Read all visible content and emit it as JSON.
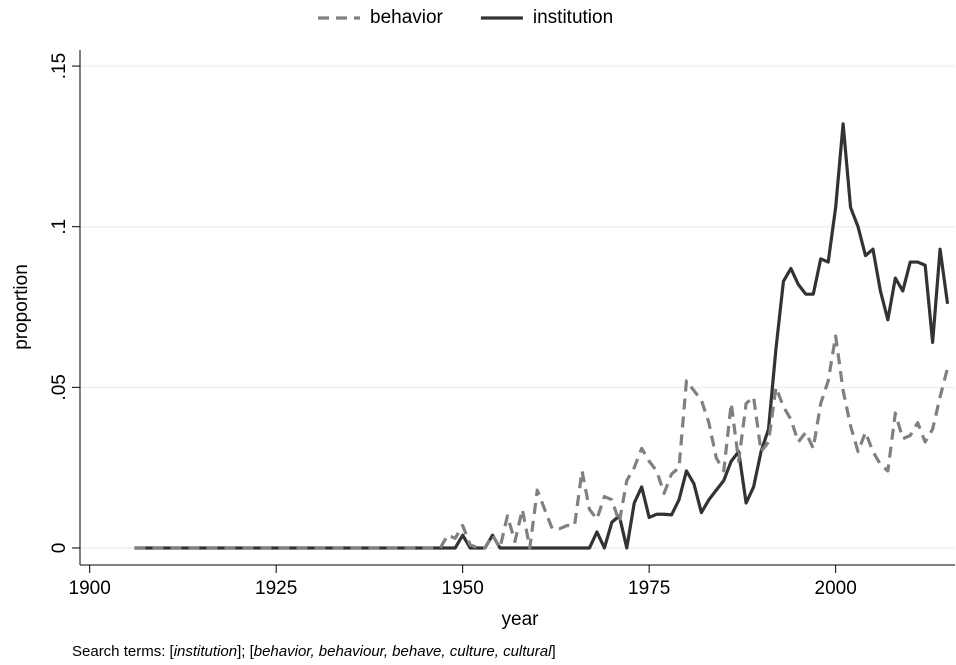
{
  "chart_data": {
    "type": "line",
    "x_label": "year",
    "y_label": "proportion",
    "note": [
      "Search terms: [",
      "institution",
      "]; [",
      "behavior, behaviour, behave, culture, cultural",
      "]"
    ],
    "legend": "top",
    "grid": true,
    "xlim": [
      1898.7,
      2016
    ],
    "ylim": [
      -0.0053,
      0.155
    ],
    "xticks": [
      1900,
      1925,
      1950,
      1975,
      2000
    ],
    "yticks": [
      0,
      {
        "value": 0.05,
        "label": ".05"
      },
      {
        "value": 0.1,
        "label": ".1"
      },
      {
        "value": 0.15,
        "label": ".15"
      }
    ],
    "x": [
      1906,
      1907,
      1908,
      1909,
      1910,
      1911,
      1912,
      1913,
      1914,
      1915,
      1916,
      1917,
      1918,
      1919,
      1920,
      1921,
      1922,
      1923,
      1924,
      1925,
      1926,
      1927,
      1928,
      1929,
      1930,
      1931,
      1932,
      1933,
      1934,
      1935,
      1936,
      1937,
      1938,
      1939,
      1940,
      1941,
      1942,
      1943,
      1944,
      1945,
      1946,
      1947,
      1948,
      1949,
      1950,
      1951,
      1952,
      1953,
      1954,
      1955,
      1956,
      1957,
      1958,
      1959,
      1960,
      1961,
      1962,
      1963,
      1964,
      1965,
      1966,
      1967,
      1968,
      1969,
      1970,
      1971,
      1972,
      1973,
      1974,
      1975,
      1976,
      1977,
      1978,
      1979,
      1980,
      1981,
      1982,
      1983,
      1984,
      1985,
      1986,
      1987,
      1988,
      1989,
      1990,
      1991,
      1992,
      1993,
      1994,
      1995,
      1996,
      1997,
      1998,
      1999,
      2000,
      2001,
      2002,
      2003,
      2004,
      2005,
      2006,
      2007,
      2008,
      2009,
      2010,
      2011,
      2012,
      2013,
      2014,
      2015
    ],
    "series": [
      {
        "name": "institution",
        "color": "#333333",
        "dash": false,
        "values": [
          0,
          0,
          0,
          0,
          0,
          0,
          0,
          0,
          0,
          0,
          0,
          0,
          0,
          0,
          0,
          0,
          0,
          0,
          0,
          0,
          0,
          0,
          0,
          0,
          0,
          0,
          0,
          0,
          0,
          0,
          0,
          0,
          0,
          0,
          0,
          0,
          0,
          0,
          0,
          0,
          0,
          0,
          0,
          0,
          0.004,
          0,
          0,
          0,
          0.004,
          0,
          0,
          0,
          0,
          0,
          0,
          0,
          0,
          0,
          0,
          0,
          0,
          0,
          0.005,
          0,
          0.008,
          0.01,
          0,
          0.014,
          0.019,
          0.0095,
          0.0105,
          0.0105,
          0.0103,
          0.015,
          0.024,
          0.02,
          0.011,
          0.015,
          0.018,
          0.021,
          0.027,
          0.03,
          0.014,
          0.019,
          0.03,
          0.037,
          0.062,
          0.083,
          0.087,
          0.082,
          0.079,
          0.079,
          0.09,
          0.089,
          0.106,
          0.132,
          0.106,
          0.1,
          0.091,
          0.093,
          0.08,
          0.071,
          0.084,
          0.08,
          0.089,
          0.089,
          0.088,
          0.064,
          0.093,
          0.076
        ]
      },
      {
        "name": "behavior",
        "color": "#808080",
        "dash": true,
        "values": [
          0,
          0,
          0,
          0,
          0,
          0,
          0,
          0,
          0,
          0,
          0,
          0,
          0,
          0,
          0,
          0,
          0,
          0,
          0,
          0,
          0,
          0,
          0,
          0,
          0,
          0,
          0,
          0,
          0,
          0,
          0,
          0,
          0,
          0,
          0,
          0,
          0,
          0,
          0,
          0,
          0,
          0,
          0.004,
          0.003,
          0.007,
          0.001,
          0,
          0,
          0.004,
          0,
          0.01,
          0.002,
          0.012,
          0,
          0.018,
          0.012,
          0.006,
          0.006,
          0.007,
          0.007,
          0.024,
          0.012,
          0.009,
          0.016,
          0.015,
          0.008,
          0.021,
          0.025,
          0.031,
          0.027,
          0.024,
          0.017,
          0.023,
          0.025,
          0.052,
          0.049,
          0.046,
          0.039,
          0.028,
          0.024,
          0.045,
          0.027,
          0.045,
          0.047,
          0.03,
          0.033,
          0.05,
          0.044,
          0.04,
          0.033,
          0.036,
          0.031,
          0.045,
          0.052,
          0.066,
          0.049,
          0.038,
          0.03,
          0.036,
          0.03,
          0.026,
          0.024,
          0.042,
          0.034,
          0.035,
          0.039,
          0.033,
          0.037,
          0.047,
          0.056
        ]
      }
    ]
  }
}
